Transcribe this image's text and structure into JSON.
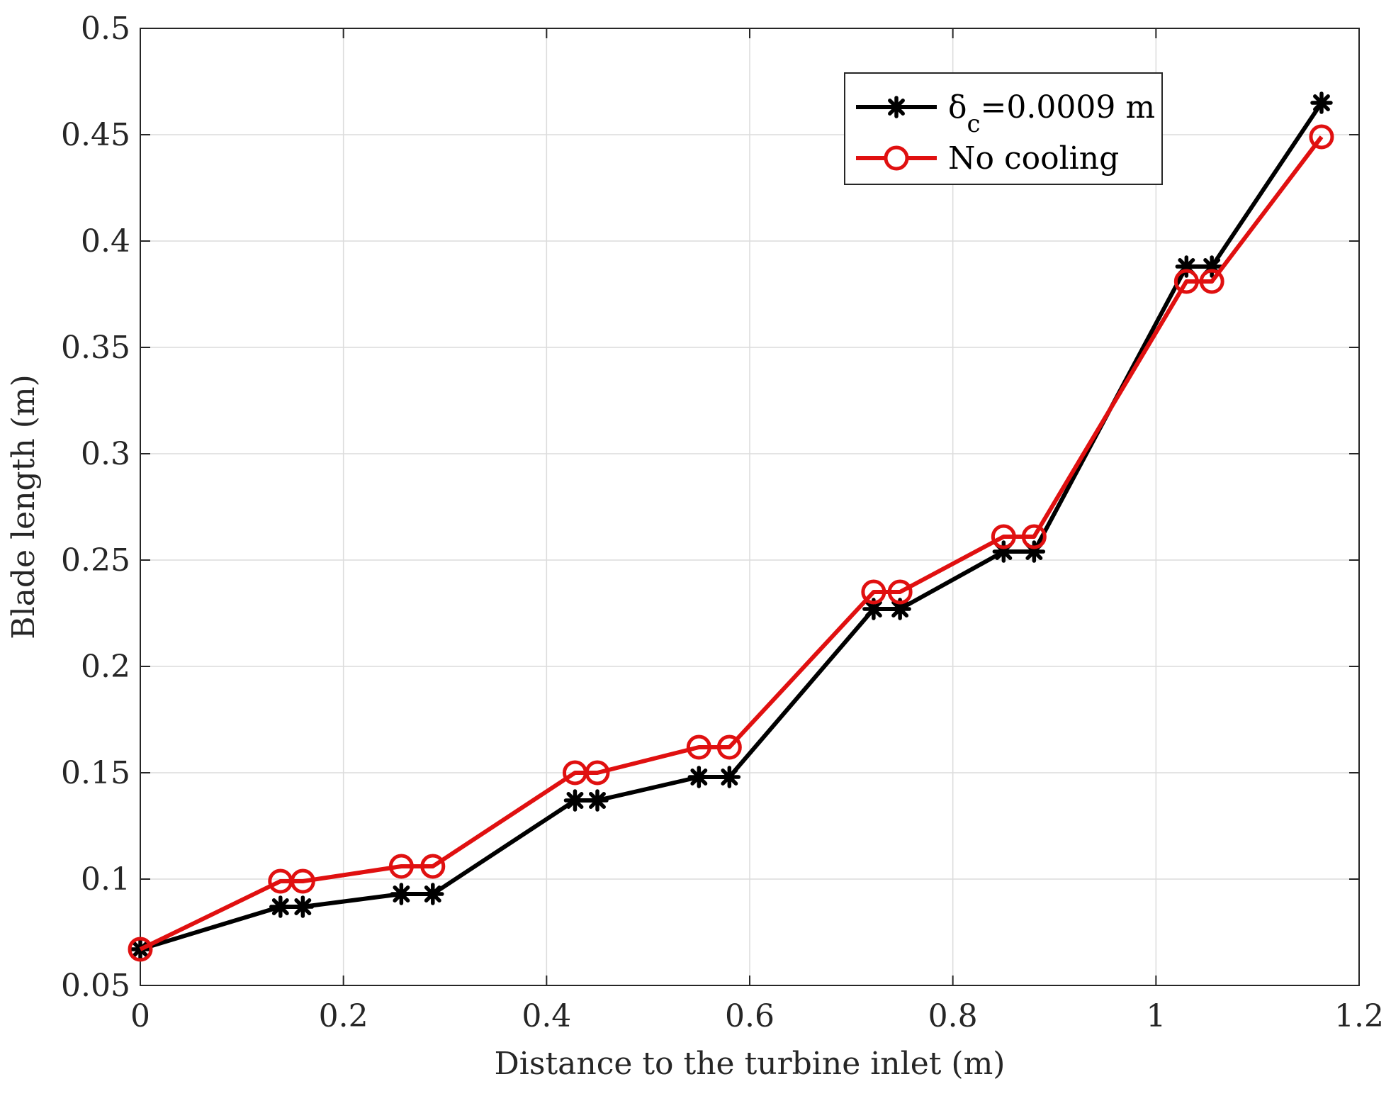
{
  "chart_data": {
    "type": "line",
    "title": "",
    "xlabel": "Distance to the turbine inlet (m)",
    "ylabel": "Blade length (m)",
    "xlim": [
      0,
      1.2
    ],
    "ylim": [
      0.05,
      0.5
    ],
    "xticks": [
      0,
      0.2,
      0.4,
      0.6,
      0.8,
      1,
      1.2
    ],
    "xtick_labels": [
      "0",
      "0.2",
      "0.4",
      "0.6",
      "0.8",
      "1",
      "1.2"
    ],
    "yticks": [
      0.05,
      0.1,
      0.15,
      0.2,
      0.25,
      0.3,
      0.35,
      0.4,
      0.45,
      0.5
    ],
    "ytick_labels": [
      "0.05",
      "0.1",
      "0.15",
      "0.2",
      "0.25",
      "0.3",
      "0.35",
      "0.4",
      "0.45",
      "0.5"
    ],
    "grid": true,
    "legend_position": "top-right",
    "series": [
      {
        "name": "δc=0.0009 m",
        "legend_main": "δ",
        "legend_sub": "c",
        "legend_rest": "=0.0009 m",
        "color": "#000000",
        "marker": "asterisk",
        "x": [
          0,
          0.138,
          0.16,
          0.257,
          0.288,
          0.428,
          0.45,
          0.55,
          0.58,
          0.722,
          0.748,
          0.85,
          0.88,
          1.03,
          1.055,
          1.163
        ],
        "y": [
          0.067,
          0.087,
          0.087,
          0.093,
          0.093,
          0.137,
          0.137,
          0.148,
          0.148,
          0.227,
          0.227,
          0.254,
          0.254,
          0.388,
          0.388,
          0.465
        ]
      },
      {
        "name": "No cooling",
        "legend_main": "No cooling",
        "legend_sub": "",
        "legend_rest": "",
        "color": "#e01010",
        "marker": "circle",
        "x": [
          0,
          0.138,
          0.16,
          0.257,
          0.288,
          0.428,
          0.45,
          0.55,
          0.58,
          0.722,
          0.748,
          0.85,
          0.88,
          1.03,
          1.055,
          1.163
        ],
        "y": [
          0.067,
          0.099,
          0.099,
          0.106,
          0.106,
          0.15,
          0.15,
          0.162,
          0.162,
          0.235,
          0.235,
          0.261,
          0.261,
          0.381,
          0.381,
          0.449
        ]
      }
    ]
  }
}
